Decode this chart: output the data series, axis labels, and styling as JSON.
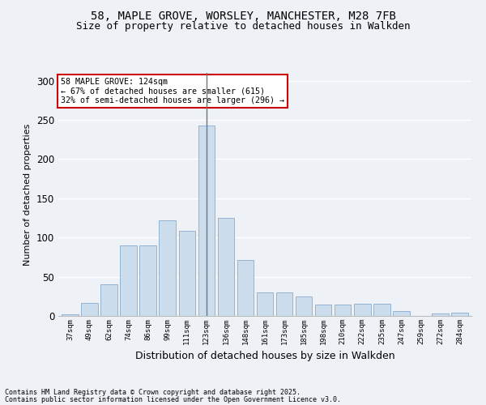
{
  "title1": "58, MAPLE GROVE, WORSLEY, MANCHESTER, M28 7FB",
  "title2": "Size of property relative to detached houses in Walkden",
  "xlabel": "Distribution of detached houses by size in Walkden",
  "ylabel": "Number of detached properties",
  "categories": [
    "37sqm",
    "49sqm",
    "62sqm",
    "74sqm",
    "86sqm",
    "99sqm",
    "111sqm",
    "123sqm",
    "136sqm",
    "148sqm",
    "161sqm",
    "173sqm",
    "185sqm",
    "198sqm",
    "210sqm",
    "222sqm",
    "235sqm",
    "247sqm",
    "259sqm",
    "272sqm",
    "284sqm"
  ],
  "values": [
    2,
    17,
    40,
    90,
    90,
    122,
    109,
    243,
    125,
    71,
    30,
    30,
    25,
    14,
    14,
    16,
    16,
    6,
    0,
    3,
    4
  ],
  "bar_color": "#ccdded",
  "bar_edge_color": "#88aacc",
  "vline_color": "#667788",
  "annotation_text": "58 MAPLE GROVE: 124sqm\n← 67% of detached houses are smaller (615)\n32% of semi-detached houses are larger (296) →",
  "annotation_box_color": "#ffffff",
  "annotation_border_color": "#cc0000",
  "footer1": "Contains HM Land Registry data © Crown copyright and database right 2025.",
  "footer2": "Contains public sector information licensed under the Open Government Licence v3.0.",
  "bg_color": "#eef2f7",
  "ylim": [
    0,
    310
  ],
  "yticks": [
    0,
    50,
    100,
    150,
    200,
    250,
    300
  ],
  "title_fontsize": 10,
  "subtitle_fontsize": 9,
  "bar_width": 0.85
}
